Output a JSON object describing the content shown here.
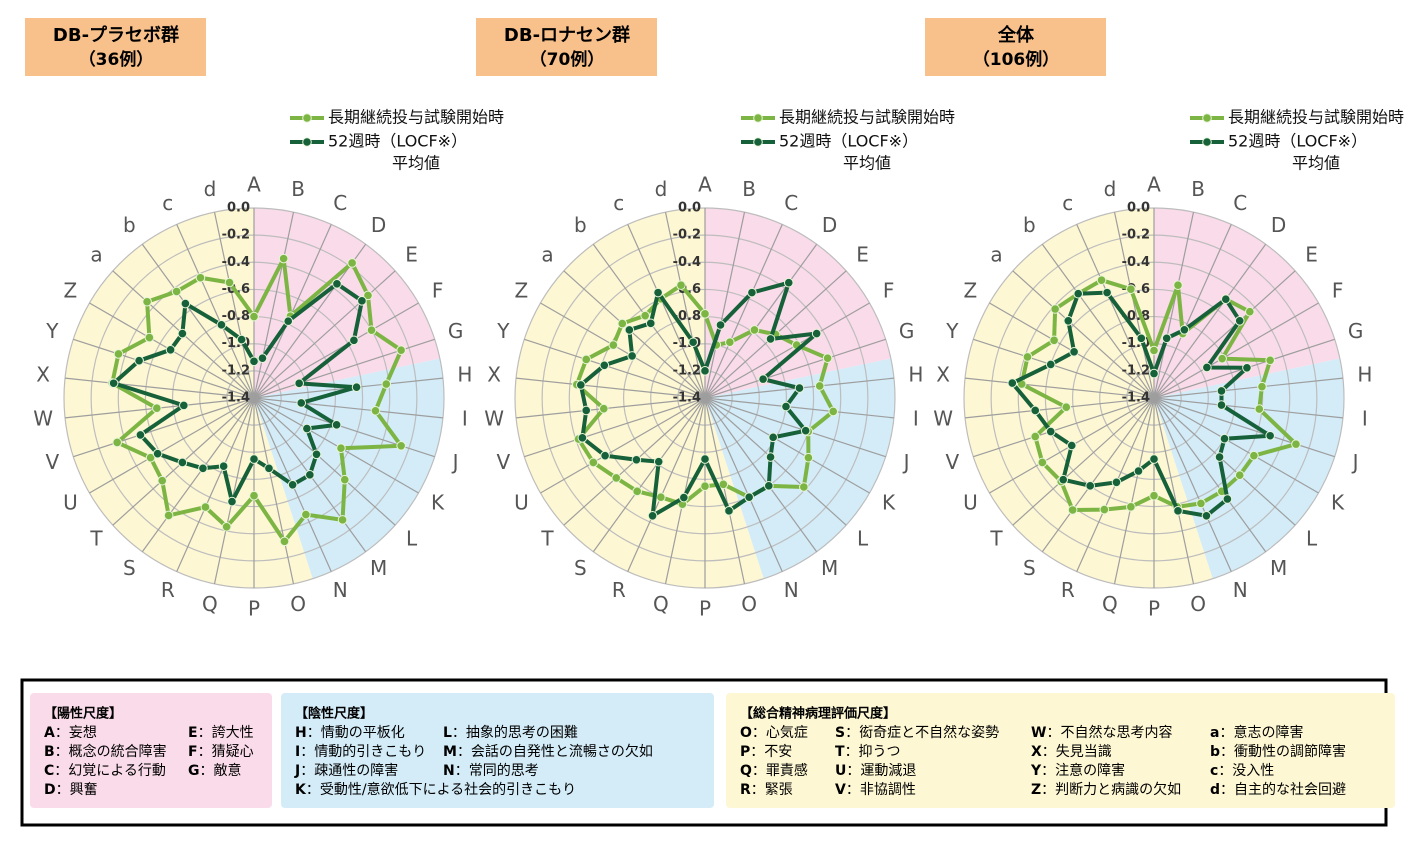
{
  "chart_data": [
    {
      "type": "radar",
      "title": "DB-プラセボ群",
      "subtitle": "（36例）",
      "categories": [
        "A",
        "B",
        "C",
        "D",
        "E",
        "F",
        "G",
        "H",
        "I",
        "J",
        "K",
        "L",
        "M",
        "N",
        "O",
        "P",
        "Q",
        "R",
        "S",
        "T",
        "U",
        "V",
        "W",
        "X",
        "Y",
        "Z",
        "a",
        "b",
        "c",
        "d"
      ],
      "series": [
        {
          "name": "長期継続投与試験開始時",
          "color": "#7db544",
          "values": [
            -0.8,
            -0.35,
            -0.74,
            -0.17,
            -0.27,
            -0.4,
            -0.26,
            -0.42,
            -0.5,
            -0.26,
            -0.66,
            -0.5,
            -0.29,
            -0.46,
            -0.32,
            -0.68,
            -0.43,
            -0.52,
            -0.33,
            -0.49,
            -0.52,
            -0.34,
            -0.68,
            -0.35,
            -0.35,
            -0.51,
            -0.34,
            -0.43,
            -0.43,
            -0.53
          ]
        },
        {
          "name": "52週時（LOCF※）",
          "color": "#16613a",
          "values": [
            -1.13,
            -1.1,
            -0.78,
            -0.36,
            -0.33,
            -0.55,
            -1.05,
            -0.64,
            -1.05,
            -0.76,
            -0.95,
            -0.78,
            -0.7,
            -0.7,
            -0.87,
            -0.95,
            -0.62,
            -0.85,
            -0.76,
            -0.69,
            -0.58,
            -0.52,
            -0.88,
            -0.36,
            -0.51,
            -0.69,
            -0.69,
            -0.54,
            -0.81,
            -0.96
          ]
        }
      ],
      "legend_note": "平均値",
      "ylim": [
        -1.4,
        0
      ],
      "yticks": [
        {
          "value": 0,
          "label": "0.0"
        },
        -0.2,
        -0.4,
        -0.6,
        -0.8,
        {
          "value": -1,
          "label": "-1.0"
        },
        -1.2,
        -1.4
      ],
      "grid": true
    },
    {
      "type": "radar",
      "title": "DB-ロナセン群",
      "subtitle": "（70例）",
      "categories": [
        "A",
        "B",
        "C",
        "D",
        "E",
        "F",
        "G",
        "H",
        "I",
        "J",
        "K",
        "L",
        "M",
        "N",
        "O",
        "P",
        "Q",
        "R",
        "S",
        "T",
        "U",
        "V",
        "W",
        "X",
        "Y",
        "Z",
        "a",
        "b",
        "c",
        "d"
      ],
      "series": [
        {
          "name": "長期継続投与試験開始時",
          "color": "#7db544",
          "values": [
            -0.78,
            -1.0,
            -0.95,
            -0.78,
            -0.7,
            -0.62,
            -0.45,
            -0.55,
            -0.45,
            -0.6,
            -0.52,
            -0.42,
            -0.6,
            -0.6,
            -0.75,
            -0.75,
            -0.6,
            -0.6,
            -0.55,
            -0.52,
            -0.45,
            -0.42,
            -0.65,
            -0.45,
            -0.48,
            -0.62,
            -0.58,
            -0.65,
            -0.6,
            -0.55
          ]
        },
        {
          "name": "52週時（LOCF※）",
          "color": "#16613a",
          "values": [
            -1.2,
            -0.85,
            -0.55,
            -0.35,
            -0.75,
            -0.45,
            -0.95,
            -0.7,
            -0.8,
            -0.62,
            -0.82,
            -0.75,
            -0.6,
            -0.6,
            -0.55,
            -0.95,
            -0.65,
            -0.45,
            -0.82,
            -0.72,
            -0.55,
            -0.45,
            -0.52,
            -0.48,
            -0.62,
            -0.78,
            -0.65,
            -0.72,
            -0.55,
            -0.98
          ]
        }
      ],
      "legend_note": "平均値",
      "ylim": [
        -1.4,
        0
      ],
      "yticks": [
        {
          "value": 0,
          "label": "0.0"
        },
        -0.2,
        -0.4,
        -0.6,
        -0.8,
        {
          "value": -1,
          "label": "-1.0"
        },
        -1.2,
        -1.4
      ],
      "grid": true
    },
    {
      "type": "radar",
      "title": "全体",
      "subtitle": "（106例）",
      "categories": [
        "A",
        "B",
        "C",
        "D",
        "E",
        "F",
        "G",
        "H",
        "I",
        "J",
        "K",
        "L",
        "M",
        "N",
        "O",
        "P",
        "Q",
        "R",
        "S",
        "T",
        "U",
        "V",
        "W",
        "X",
        "Y",
        "Z",
        "a",
        "b",
        "c",
        "d"
      ],
      "series": [
        {
          "name": "長期継続投与試験開始時",
          "color": "#7db544",
          "values": [
            -1.05,
            -0.55,
            -0.88,
            -0.5,
            -0.45,
            -0.82,
            -0.5,
            -0.6,
            -0.62,
            -0.3,
            -0.55,
            -0.55,
            -0.55,
            -0.55,
            -0.58,
            -0.68,
            -0.58,
            -0.5,
            -0.38,
            -0.48,
            -0.45,
            -0.48,
            -0.75,
            -0.42,
            -0.42,
            -0.55,
            -0.42,
            -0.45,
            -0.45,
            -0.58
          ]
        },
        {
          "name": "52週時（LOCF※）",
          "color": "#16613a",
          "values": [
            -1.22,
            -0.95,
            -0.85,
            -0.5,
            -0.55,
            -0.95,
            -0.68,
            -0.9,
            -0.9,
            -0.5,
            -0.8,
            -0.75,
            -0.48,
            -0.45,
            -0.55,
            -0.95,
            -0.85,
            -0.72,
            -0.6,
            -0.5,
            -0.7,
            -0.6,
            -0.52,
            -0.35,
            -0.6,
            -0.72,
            -0.55,
            -0.45,
            -0.55,
            -0.95
          ]
        }
      ],
      "legend_note": "平均値",
      "ylim": [
        -1.4,
        0
      ],
      "yticks": [
        {
          "value": 0,
          "label": "0.0"
        },
        -0.2,
        -0.4,
        -0.6,
        -0.8,
        {
          "value": -1,
          "label": "-1.0"
        },
        -1.2,
        -1.4
      ],
      "grid": true
    }
  ],
  "legend": {
    "scales": [
      {
        "title": "【陽性尺度】",
        "color": "#fadbe9",
        "items": [
          {
            "key": "A",
            "text": "：妄想"
          },
          {
            "key": "B",
            "text": "：概念の統合障害"
          },
          {
            "key": "C",
            "text": "：幻覚による行動"
          },
          {
            "key": "D",
            "text": "：興奮"
          },
          {
            "key": "E",
            "text": "：誇大性"
          },
          {
            "key": "F",
            "text": "：猜疑心"
          },
          {
            "key": "G",
            "text": "：敵意"
          }
        ]
      },
      {
        "title": "【陰性尺度】",
        "color": "#d3ecf8",
        "items": [
          {
            "key": "H",
            "text": "：情動の平板化"
          },
          {
            "key": "I",
            "text": "：情動的引きこもり"
          },
          {
            "key": "J",
            "text": "：疎通性の障害"
          },
          {
            "key": "K",
            "text": "：受動性/意欲低下による社会的引きこもり"
          },
          {
            "key": "L",
            "text": "：抽象的思考の困難"
          },
          {
            "key": "M",
            "text": "：会話の自発性と流暢さの欠如"
          },
          {
            "key": "N",
            "text": "：常同的思考"
          }
        ]
      },
      {
        "title": "【総合精神病理評価尺度】",
        "color": "#fdf7d3",
        "items": [
          {
            "key": "O",
            "text": "：心気症"
          },
          {
            "key": "P",
            "text": "：不安"
          },
          {
            "key": "Q",
            "text": "：罪責感"
          },
          {
            "key": "R",
            "text": "：緊張"
          },
          {
            "key": "S",
            "text": "：衒奇症と不自然な姿勢"
          },
          {
            "key": "T",
            "text": "：抑うつ"
          },
          {
            "key": "U",
            "text": "：運動減退"
          },
          {
            "key": "V",
            "text": "：非協調性"
          },
          {
            "key": "W",
            "text": "：不自然な思考内容"
          },
          {
            "key": "X",
            "text": "：失見当識"
          },
          {
            "key": "Y",
            "text": "：注意の障害"
          },
          {
            "key": "Z",
            "text": "：判断力と病識の欠如"
          },
          {
            "key": "a",
            "text": "：意志の障害"
          },
          {
            "key": "b",
            "text": "：衝動性の調節障害"
          },
          {
            "key": "c",
            "text": "：没入性"
          },
          {
            "key": "d",
            "text": "：自主的な社会回避"
          }
        ]
      }
    ]
  }
}
